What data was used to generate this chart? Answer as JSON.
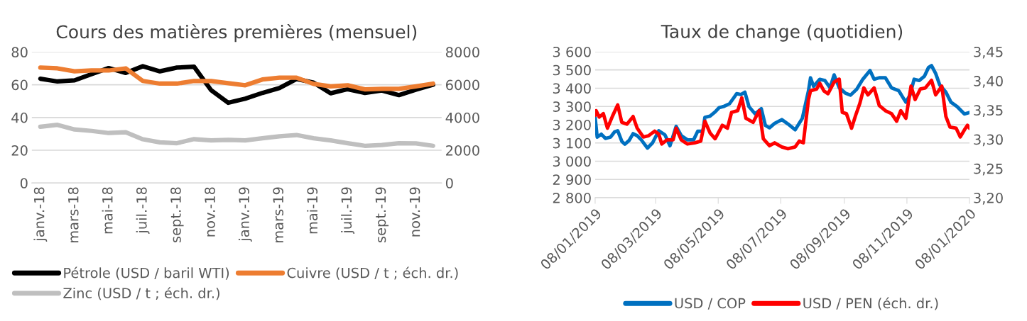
{
  "chart_data": [
    {
      "type": "line",
      "title": "Cours des matières premières (mensuel)",
      "categories": [
        "janv.-18",
        null,
        "mars-18",
        null,
        "mai-18",
        null,
        "juil.-18",
        null,
        "sept.-18",
        null,
        "nov.-18",
        null,
        "janv.-19",
        null,
        "mars-19",
        null,
        "mai-19",
        null,
        "juil.-19",
        null,
        "sept.-19",
        null,
        "nov.-19",
        null
      ],
      "series": [
        {
          "name": "Pétrole (USD / baril WTI)",
          "color": "#000000",
          "values": [
            63.7,
            62,
            62.7,
            66.5,
            70.2,
            67.2,
            71.3,
            68.2,
            70.5,
            71,
            56.7,
            49,
            51.5,
            55,
            58,
            63.5,
            61.3,
            54.8,
            57.3,
            55,
            56.5,
            53.7,
            57,
            60
          ]
        },
        {
          "name": "Zinc (USD / t ; éch. dr.)",
          "color": "#bfbfbf",
          "axis": "y2",
          "values": [
            3430,
            3550,
            3270,
            3180,
            3050,
            3100,
            2670,
            2480,
            2430,
            2680,
            2600,
            2630,
            2600,
            2730,
            2850,
            2930,
            2730,
            2600,
            2430,
            2270,
            2320,
            2430,
            2420,
            2270
          ]
        },
        {
          "name": "Cuivre (USD / t ; éch. dr.)",
          "color": "#ed7d31",
          "axis": "y2",
          "values": [
            7050,
            7000,
            6820,
            6880,
            6870,
            7000,
            6230,
            6070,
            6070,
            6230,
            6230,
            6100,
            5970,
            6320,
            6430,
            6430,
            6050,
            5900,
            5970,
            5720,
            5750,
            5750,
            5900,
            6070
          ]
        }
      ],
      "ylim": [
        0,
        80
      ],
      "yticks": [
        0,
        20,
        40,
        60,
        80
      ],
      "y2lim": [
        0,
        8000
      ],
      "y2ticks": [
        0,
        2000,
        4000,
        6000,
        8000
      ],
      "grid": "y",
      "legend": "bottom",
      "line_style": "solid",
      "marker": "none"
    },
    {
      "type": "line",
      "title": "Taux de change (quotidien)",
      "series": [
        {
          "name": "USD / COP",
          "color": "#0070c0",
          "x": [
            "2019-01-08",
            "2019-01-10",
            "2019-01-14",
            "2019-01-18",
            "2019-01-23",
            "2019-01-27",
            "2019-01-30",
            "2019-02-03",
            "2019-02-06",
            "2019-02-10",
            "2019-02-14",
            "2019-02-18",
            "2019-02-22",
            "2019-02-28",
            "2019-03-05",
            "2019-03-11",
            "2019-03-17",
            "2019-03-22",
            "2019-03-28",
            "2019-04-02",
            "2019-04-08",
            "2019-04-14",
            "2019-04-18",
            "2019-04-23",
            "2019-04-25",
            "2019-04-30",
            "2019-05-05",
            "2019-05-09",
            "2019-05-13",
            "2019-05-19",
            "2019-05-23",
            "2019-05-26",
            "2019-05-30",
            "2019-06-03",
            "2019-06-07",
            "2019-06-13",
            "2019-06-19",
            "2019-06-23",
            "2019-06-27",
            "2019-07-02",
            "2019-07-09",
            "2019-07-15",
            "2019-07-22",
            "2019-07-29",
            "2019-08-04",
            "2019-08-06",
            "2019-08-09",
            "2019-08-15",
            "2019-08-20",
            "2019-08-25",
            "2019-08-29",
            "2019-09-03",
            "2019-09-09",
            "2019-09-14",
            "2019-09-20",
            "2019-09-26",
            "2019-10-03",
            "2019-10-07",
            "2019-10-12",
            "2019-10-18",
            "2019-10-24",
            "2019-10-31",
            "2019-11-07",
            "2019-11-11",
            "2019-11-15",
            "2019-11-20",
            "2019-11-25",
            "2019-11-29",
            "2019-12-02",
            "2019-12-06",
            "2019-12-10",
            "2019-12-16",
            "2019-12-21",
            "2019-12-27",
            "2020-01-03",
            "2020-01-08"
          ],
          "values": [
            3240,
            3132,
            3148,
            3125,
            3132,
            3161,
            3167,
            3109,
            3093,
            3113,
            3151,
            3140,
            3117,
            3072,
            3101,
            3167,
            3145,
            3085,
            3191,
            3140,
            3117,
            3117,
            3164,
            3164,
            3240,
            3247,
            3270,
            3294,
            3299,
            3315,
            3346,
            3370,
            3365,
            3378,
            3299,
            3259,
            3288,
            3196,
            3183,
            3207,
            3228,
            3204,
            3172,
            3235,
            3386,
            3457,
            3410,
            3449,
            3442,
            3402,
            3473,
            3402,
            3373,
            3362,
            3394,
            3449,
            3497,
            3449,
            3457,
            3457,
            3402,
            3386,
            3323,
            3362,
            3449,
            3442,
            3465,
            3513,
            3524,
            3481,
            3418,
            3378,
            3323,
            3299,
            3259,
            3267
          ]
        },
        {
          "name": "USD / PEN (éch. dr.)",
          "color": "#ff0000",
          "axis": "y2",
          "x": [
            "2019-01-08",
            "2019-01-09",
            "2019-01-12",
            "2019-01-16",
            "2019-01-20",
            "2019-01-25",
            "2019-01-30",
            "2019-02-03",
            "2019-02-08",
            "2019-02-14",
            "2019-02-18",
            "2019-02-24",
            "2019-03-01",
            "2019-03-07",
            "2019-03-11",
            "2019-03-14",
            "2019-03-19",
            "2019-03-25",
            "2019-03-28",
            "2019-04-02",
            "2019-04-08",
            "2019-04-15",
            "2019-04-21",
            "2019-04-25",
            "2019-04-30",
            "2019-05-05",
            "2019-05-12",
            "2019-05-17",
            "2019-05-21",
            "2019-05-27",
            "2019-05-31",
            "2019-06-04",
            "2019-06-11",
            "2019-06-17",
            "2019-06-21",
            "2019-06-27",
            "2019-07-02",
            "2019-07-09",
            "2019-07-15",
            "2019-07-22",
            "2019-07-26",
            "2019-07-30",
            "2019-08-04",
            "2019-08-06",
            "2019-08-12",
            "2019-08-15",
            "2019-08-19",
            "2019-08-23",
            "2019-08-29",
            "2019-09-03",
            "2019-09-06",
            "2019-09-10",
            "2019-09-15",
            "2019-09-19",
            "2019-09-23",
            "2019-09-27",
            "2019-10-01",
            "2019-10-07",
            "2019-10-12",
            "2019-10-18",
            "2019-10-24",
            "2019-10-29",
            "2019-11-02",
            "2019-11-07",
            "2019-11-12",
            "2019-11-16",
            "2019-11-21",
            "2019-11-26",
            "2019-12-02",
            "2019-12-06",
            "2019-12-12",
            "2019-12-16",
            "2019-12-20",
            "2019-12-26",
            "2019-12-30",
            "2020-01-03",
            "2020-01-06",
            "2020-01-08"
          ],
          "values": [
            3.341,
            3.349,
            3.338,
            3.344,
            3.319,
            3.34,
            3.359,
            3.329,
            3.326,
            3.339,
            3.319,
            3.304,
            3.306,
            3.314,
            3.309,
            3.292,
            3.299,
            3.299,
            3.319,
            3.299,
            3.292,
            3.294,
            3.297,
            3.331,
            3.311,
            3.301,
            3.324,
            3.319,
            3.346,
            3.349,
            3.371,
            3.336,
            3.329,
            3.349,
            3.301,
            3.289,
            3.294,
            3.287,
            3.284,
            3.287,
            3.297,
            3.294,
            3.368,
            3.383,
            3.386,
            3.396,
            3.383,
            3.378,
            3.398,
            3.403,
            3.346,
            3.344,
            3.319,
            3.341,
            3.361,
            3.388,
            3.376,
            3.388,
            3.358,
            3.349,
            3.344,
            3.331,
            3.349,
            3.336,
            3.391,
            3.368,
            3.386,
            3.388,
            3.401,
            3.376,
            3.391,
            3.339,
            3.321,
            3.319,
            3.304,
            3.316,
            3.324,
            3.319
          ]
        }
      ],
      "xlim": [
        "2019-01-08",
        "2020-01-08"
      ],
      "xticks": [
        {
          "value": "2019-01-08",
          "label": "08/01/2019"
        },
        {
          "value": "2019-03-08",
          "label": "08/03/2019"
        },
        {
          "value": "2019-05-08",
          "label": "08/05/2019"
        },
        {
          "value": "2019-07-08",
          "label": "08/07/2019"
        },
        {
          "value": "2019-09-08",
          "label": "08/09/2019"
        },
        {
          "value": "2019-11-08",
          "label": "08/11/2019"
        },
        {
          "value": "2020-01-08",
          "label": "08/01/2020"
        }
      ],
      "ylim": [
        2800,
        3600
      ],
      "yticks": [
        {
          "value": 2800,
          "label": "2 800"
        },
        {
          "value": 2900,
          "label": "2 900"
        },
        {
          "value": 3000,
          "label": "3 000"
        },
        {
          "value": 3100,
          "label": "3 100"
        },
        {
          "value": 3200,
          "label": "3 200"
        },
        {
          "value": 3300,
          "label": "3 300"
        },
        {
          "value": 3400,
          "label": "3 400"
        },
        {
          "value": 3500,
          "label": "3 500"
        },
        {
          "value": 3600,
          "label": "3 600"
        }
      ],
      "y2lim": [
        3.2,
        3.45
      ],
      "y2ticks": [
        {
          "value": 3.2,
          "label": "3,20"
        },
        {
          "value": 3.25,
          "label": "3,25"
        },
        {
          "value": 3.3,
          "label": "3,30"
        },
        {
          "value": 3.35,
          "label": "3,35"
        },
        {
          "value": 3.4,
          "label": "3,40"
        },
        {
          "value": 3.45,
          "label": "3,45"
        }
      ],
      "grid": "y",
      "legend": "bottom",
      "line_style": "solid",
      "marker": "none"
    }
  ]
}
